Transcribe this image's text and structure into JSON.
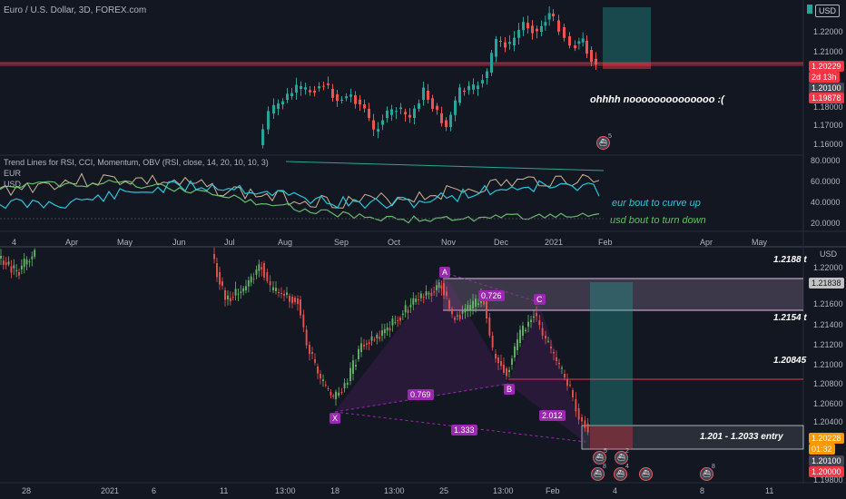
{
  "top_chart": {
    "symbol_title": "Euro / U.S. Dollar, 3D, FOREX.com",
    "currency_badge": "USD",
    "price_ticks": [
      "1.22000",
      "1.21000",
      "1.20229",
      "2d 13h",
      "1.20100",
      "1.19878",
      "1.18000",
      "1.17000",
      "1.16000"
    ],
    "current_price": "1.20229",
    "countdown": "2d 13h",
    "bid_price": "1.20100",
    "ask_price": "1.19878",
    "annotation": "ohhhh noooooooooooooo :(",
    "event_badge_count": "5"
  },
  "indicator": {
    "title": "Trend Lines for RSI, CCI, Momentum, OBV (RSI, close, 14, 20, 10, 10, 3)",
    "legend_eur": "EUR",
    "legend_usd": "USD",
    "ticks": [
      "80.0000",
      "60.0000",
      "40.0000",
      "20.0000"
    ],
    "note_eur": "eur bout to curve up",
    "note_usd": "usd bout to turn down",
    "colors": {
      "eur": "#26c6da",
      "usd": "#66bb6a",
      "rsi": "#ffe0b2",
      "trend": "#26a69a"
    }
  },
  "time_axis_top": [
    "4",
    "Apr",
    "May",
    "Jun",
    "Jul",
    "Aug",
    "Sep",
    "Oct",
    "Nov",
    "Dec",
    "2021",
    "Feb",
    "Apr",
    "May"
  ],
  "bottom_chart": {
    "currency_label": "USD",
    "price_ticks": [
      "1.22000",
      "1.21838",
      "1.21600",
      "1.21400",
      "1.21200",
      "1.21000",
      "1.20800",
      "1.20600",
      "1.20400",
      "1.20228",
      "01:32",
      "1.20100",
      "1.20000",
      "1.19800"
    ],
    "current_price": "1.20228",
    "countdown": "01:32",
    "bid_price": "1.20100",
    "ask_price": "1.20000",
    "level_labels": [
      "1.2188 t",
      "1.2154 t",
      "1.20845",
      "1.201 - 1.2033 entry"
    ],
    "pattern_points": [
      "X",
      "A",
      "B",
      "C"
    ],
    "ratios": [
      "0.726",
      "0.769",
      "2.012",
      "1.333"
    ],
    "event_counts": [
      "5",
      "2",
      "8",
      "4",
      "8",
      "8"
    ]
  },
  "time_axis_bottom": [
    "28",
    "2021",
    "6",
    "11",
    "13:00",
    "18",
    "13:00",
    "25",
    "13:00",
    "Feb",
    "4",
    "8",
    "11"
  ]
}
